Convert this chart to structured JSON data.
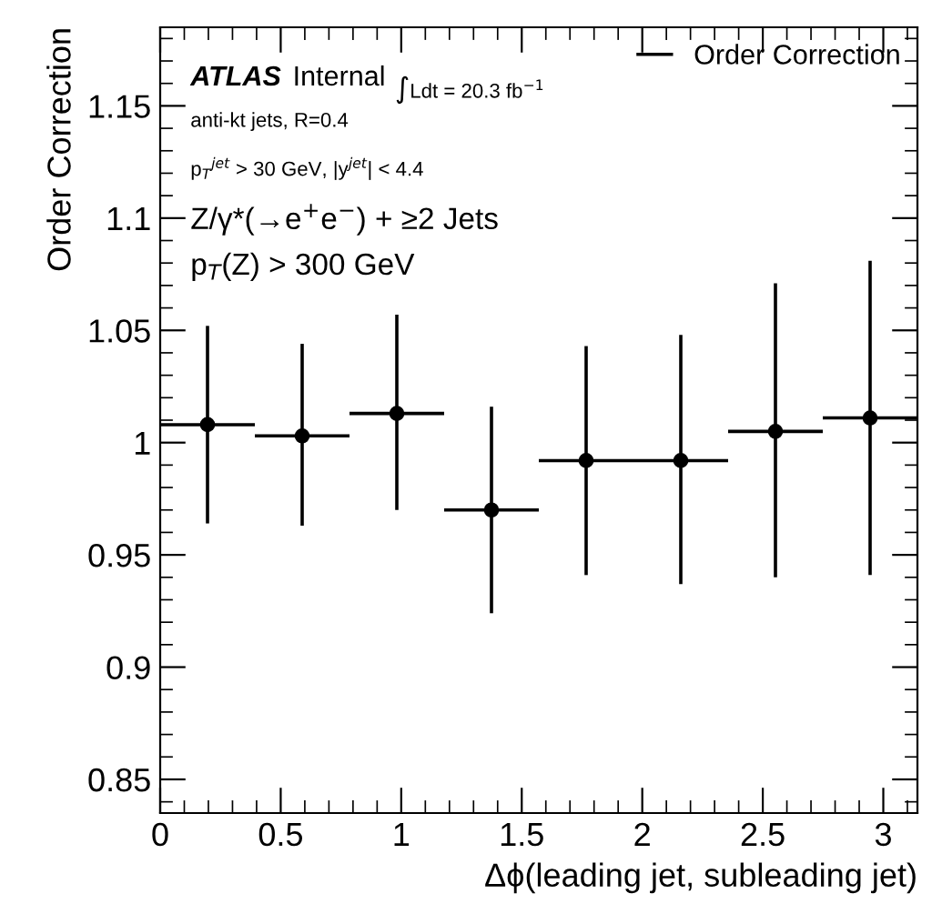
{
  "chart_data": {
    "type": "scatter",
    "xlabel": "Δϕ(leading jet, subleading jet)",
    "ylabel": "Order Correction",
    "x": [
      0.19635,
      0.58905,
      0.98175,
      1.37445,
      1.76715,
      2.15985,
      2.55255,
      2.94525
    ],
    "series": [
      {
        "name": "Order Correction",
        "color": "#000000",
        "values": [
          1.008,
          1.003,
          1.013,
          0.97,
          0.992,
          0.992,
          1.005,
          1.011
        ],
        "errors": [
          [
            0.964,
            1.052
          ],
          [
            0.963,
            1.044
          ],
          [
            0.97,
            1.057
          ],
          [
            0.924,
            1.016
          ],
          [
            0.941,
            1.043
          ],
          [
            0.937,
            1.048
          ],
          [
            0.94,
            1.071
          ],
          [
            0.941,
            1.081
          ]
        ],
        "xerrors": [
          [
            0,
            0.3927
          ],
          [
            0.3927,
            0.7854
          ],
          [
            0.7854,
            1.1781
          ],
          [
            1.1781,
            1.5708
          ],
          [
            1.5708,
            1.9635
          ],
          [
            1.9635,
            2.3562
          ],
          [
            2.3562,
            2.7489
          ],
          [
            2.7489,
            3.1416
          ]
        ]
      }
    ],
    "marker": "circle",
    "legend": "top right",
    "grid": false,
    "xlim": [
      0,
      3.1416
    ],
    "xticks": [
      0,
      0.5,
      1,
      1.5,
      2,
      2.5,
      3
    ],
    "ylim": [
      0.835,
      1.185
    ],
    "yticks": [
      0.85,
      0.9,
      0.95,
      1,
      1.05,
      1.1,
      1.15
    ],
    "annotations": [
      "ATLAS",
      "Internal",
      "∫Ldt = 20.3 fb$^{−1}$",
      "anti-kt jets, R=0.4",
      "p$_{T}$$^{jet}$ > 30 GeV, |y$^{jet}$| < 4.4",
      "Z/γ*(→e$^{+}$e$^{−}$) + ≥2 Jets",
      "p$_{T}$(Z) > 300 GeV"
    ]
  }
}
